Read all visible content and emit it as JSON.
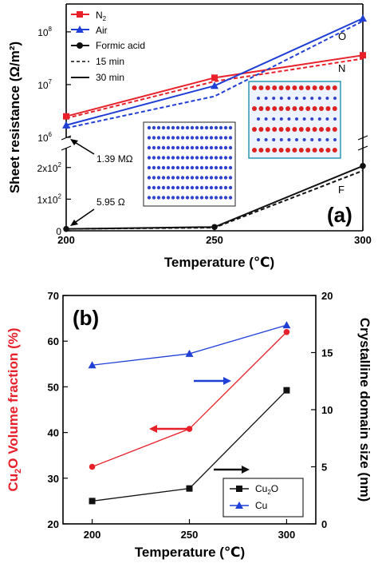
{
  "colors": {
    "n2": "#e8202a",
    "air": "#1f3fd6",
    "formic": "#111111",
    "cu2o": "#e8202a",
    "cu": "#1f3fd6",
    "inset_dots": "#3344cc",
    "inset_red": "#dd2222"
  },
  "chart_data": [
    {
      "id": "a",
      "type": "line",
      "panel_label": "(a)",
      "xlabel": "Temperature (℃)",
      "ylabel": "Sheet resistance (Ω/m²)",
      "x_ticks": [
        "200",
        "250",
        "300"
      ],
      "xlim": [
        200,
        300
      ],
      "upper_axis": {
        "scale": "log",
        "ylim": [
          1000000,
          200000000
        ],
        "tick_labels": [
          "10",
          "10",
          "10"
        ],
        "tick_exponents": [
          "6",
          "7",
          "8"
        ]
      },
      "lower_axis": {
        "scale": "linear",
        "ylim": [
          0,
          260
        ],
        "tick_labels": [
          "0",
          "1x10",
          "2x10"
        ],
        "tick_exponents": [
          "",
          "2",
          "2"
        ]
      },
      "legend": [
        {
          "label": "N",
          "sub": "2",
          "marker": "square"
        },
        {
          "label": "Air",
          "marker": "triangle"
        },
        {
          "label": "Formic acid",
          "marker": "circle"
        },
        {
          "label": "15 min",
          "style": "dashed"
        },
        {
          "label": "30 min",
          "style": "solid"
        }
      ],
      "series": [
        {
          "name": "N2",
          "duration": "30 min",
          "x": [
            200,
            250,
            300
          ],
          "y": [
            2500000,
            13500000,
            36000000
          ]
        },
        {
          "name": "N2",
          "duration": "15 min",
          "x": [
            200,
            250,
            300
          ],
          "y": [
            2300000,
            11500000,
            31000000
          ]
        },
        {
          "name": "Air",
          "duration": "30 min",
          "x": [
            200,
            250,
            300
          ],
          "y": [
            1700000,
            9500000,
            180000000
          ]
        },
        {
          "name": "Air",
          "duration": "15 min",
          "x": [
            200,
            250,
            300
          ],
          "y": [
            1500000,
            6000000,
            160000000
          ]
        },
        {
          "name": "Formic acid",
          "duration": "30 min",
          "x": [
            200,
            250,
            300
          ],
          "y": [
            5.95,
            12,
            205
          ]
        },
        {
          "name": "Formic acid",
          "duration": "15 min",
          "x": [
            200,
            250,
            300
          ],
          "y": [
            5.95,
            10,
            190
          ]
        }
      ],
      "annotations": [
        {
          "text": "1.39 MΩ"
        },
        {
          "text": "5.95 Ω"
        },
        {
          "text": "O"
        },
        {
          "text": "N"
        },
        {
          "text": "F"
        }
      ]
    },
    {
      "id": "b",
      "type": "line",
      "panel_label": "(b)",
      "xlabel": "Temperature (℃)",
      "ylabel_left": {
        "pre": "Cu",
        "sub": "2",
        "post": "O Volume fraction (%)"
      },
      "ylabel_right": "Crystalline domain size (nm)",
      "categories": [
        "200",
        "250",
        "300"
      ],
      "xlim": [
        185,
        315
      ],
      "ylim_left": [
        20,
        70
      ],
      "ylim_right": [
        0,
        20
      ],
      "y_ticks_left": [
        "20",
        "30",
        "40",
        "50",
        "60",
        "70"
      ],
      "y_ticks_right": [
        "0",
        "5",
        "10",
        "15",
        "20"
      ],
      "legend": [
        {
          "label": "Cu",
          "sub": "2",
          "post": "O",
          "marker": "square"
        },
        {
          "label": "Cu",
          "marker": "triangle"
        }
      ],
      "series": [
        {
          "name": "Cu2O volume fraction",
          "axis": "left",
          "values": [
            32.5,
            40.8,
            62.0
          ]
        },
        {
          "name": "Cu2O domain size",
          "axis": "right",
          "values": [
            2.0,
            3.1,
            11.7
          ]
        },
        {
          "name": "Cu domain size",
          "axis": "right",
          "values": [
            13.9,
            14.9,
            17.4
          ]
        }
      ]
    }
  ]
}
